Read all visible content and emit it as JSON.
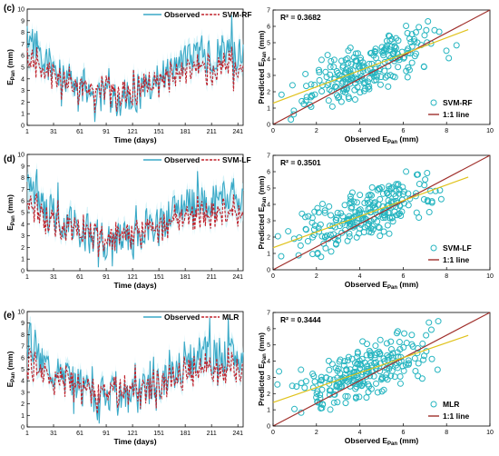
{
  "colors": {
    "observed": "#3aa9c7",
    "predicted": "#c0202a",
    "band": "#aee7f3",
    "scatter": "#26b5c0",
    "one_to_one": "#a0302c",
    "fit": "#e0c21a"
  },
  "chart_data": [
    {
      "type": "line",
      "panel": "(c)",
      "ylabel": "EPan (mm)",
      "ylabel_main": "E",
      "ylabel_sub": "Pan",
      "ylabel_unit": " (mm)",
      "xlabel": "Time (days)",
      "xlim": [
        1,
        247
      ],
      "ylim": [
        0,
        10
      ],
      "x_ticks": [
        1,
        31,
        61,
        91,
        121,
        151,
        181,
        211,
        241
      ],
      "y_ticks": [
        0,
        1,
        2,
        3,
        4,
        5,
        6,
        7,
        8,
        9,
        10
      ],
      "legend": "top-right",
      "series": [
        {
          "name": "Observed",
          "style": "solid",
          "seed": 11
        },
        {
          "name": "SVM-RF",
          "style": "dashed",
          "seed": 12
        }
      ]
    },
    {
      "type": "scatter",
      "panel": "(c)",
      "xlabel": "Observed EPan (mm)",
      "xlabel_main": "Observed E",
      "xlabel_sub": "Pan",
      "xlabel_unit": " (mm)",
      "ylabel": "Predicted EPan (mm)",
      "ylabel_main": "Predicted E",
      "ylabel_sub": "Pan",
      "ylabel_unit": " (mm)",
      "xlim": [
        0,
        10
      ],
      "ylim": [
        0,
        7
      ],
      "x_ticks": [
        0,
        2,
        4,
        6,
        8,
        10
      ],
      "y_ticks": [
        0,
        1,
        2,
        3,
        4,
        5,
        6,
        7
      ],
      "r2_text": "R² = 0.3682",
      "fit_line": {
        "slope": 0.5,
        "intercept": 1.3
      },
      "legend_position": "bottom-right",
      "legend": [
        "SVM-RF",
        "1:1 line"
      ],
      "seed": 21
    },
    {
      "type": "line",
      "panel": "(d)",
      "ylabel": "EPan (mm)",
      "ylabel_main": "E",
      "ylabel_sub": "Pan",
      "ylabel_unit": " (mm)",
      "xlabel": "Time (days)",
      "xlim": [
        1,
        247
      ],
      "ylim": [
        0,
        10
      ],
      "x_ticks": [
        1,
        31,
        61,
        91,
        121,
        151,
        181,
        211,
        241
      ],
      "y_ticks": [
        0,
        1,
        2,
        3,
        4,
        5,
        6,
        7,
        8,
        9,
        10
      ],
      "legend": "top-right",
      "series": [
        {
          "name": "Observed",
          "style": "solid",
          "seed": 31
        },
        {
          "name": "SVM-LF",
          "style": "dashed",
          "seed": 32
        }
      ]
    },
    {
      "type": "scatter",
      "panel": "(d)",
      "xlabel": "Observed EPan (mm)",
      "xlabel_main": "Observed E",
      "xlabel_sub": "Pan",
      "xlabel_unit": " (mm)",
      "ylabel": "Predicted EPan (mm)",
      "ylabel_main": "Predicted E",
      "ylabel_sub": "Pan",
      "ylabel_unit": " (mm)",
      "xlim": [
        0,
        10
      ],
      "ylim": [
        0,
        7
      ],
      "x_ticks": [
        0,
        2,
        4,
        6,
        8,
        10
      ],
      "y_ticks": [
        0,
        1,
        2,
        3,
        4,
        5,
        6,
        7
      ],
      "r2_text": "R² = 0.3501",
      "fit_line": {
        "slope": 0.48,
        "intercept": 1.35
      },
      "legend_position": "bottom-right",
      "legend": [
        "SVM-LF",
        "1:1 line"
      ],
      "seed": 41
    },
    {
      "type": "line",
      "panel": "(e)",
      "ylabel": "EPan (mm)",
      "ylabel_main": "E",
      "ylabel_sub": "Pan",
      "ylabel_unit": " (mm)",
      "xlabel": "Time (days)",
      "xlim": [
        1,
        247
      ],
      "ylim": [
        0,
        10
      ],
      "x_ticks": [
        1,
        31,
        61,
        91,
        121,
        151,
        181,
        211,
        241
      ],
      "y_ticks": [
        0,
        1,
        2,
        3,
        4,
        5,
        6,
        7,
        8,
        9,
        10
      ],
      "legend": "top-right",
      "series": [
        {
          "name": "Observed",
          "style": "solid",
          "seed": 51
        },
        {
          "name": "MLR",
          "style": "dashed",
          "seed": 52
        }
      ]
    },
    {
      "type": "scatter",
      "panel": "(e)",
      "xlabel": "Observed EPan (mm)",
      "xlabel_main": "Observed E",
      "xlabel_sub": "Pan",
      "xlabel_unit": " (mm)",
      "ylabel": "Predicted EPan (mm)",
      "ylabel_main": "Predicted E",
      "ylabel_sub": "Pan",
      "ylabel_unit": " (mm)",
      "xlim": [
        0,
        10
      ],
      "ylim": [
        0,
        7
      ],
      "x_ticks": [
        0,
        2,
        4,
        6,
        8,
        10
      ],
      "y_ticks": [
        0,
        1,
        2,
        3,
        4,
        5,
        6,
        7
      ],
      "r2_text": "R² = 0.3444",
      "fit_line": {
        "slope": 0.46,
        "intercept": 1.45
      },
      "legend_position": "bottom-right",
      "legend": [
        "MLR",
        "1:1 line"
      ],
      "seed": 61
    }
  ]
}
